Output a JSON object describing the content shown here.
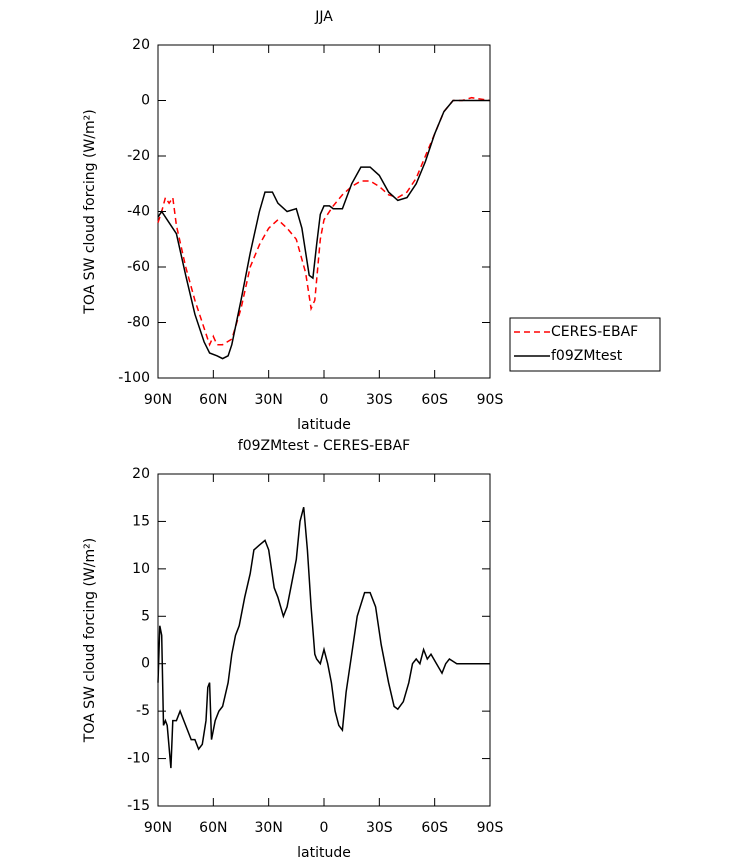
{
  "chart_data": [
    {
      "type": "line",
      "title": "JJA",
      "xlabel": "latitude",
      "ylabel": "TOA SW cloud forcing (W/m²)",
      "xlim": [
        90,
        -90
      ],
      "xticks": [
        {
          "value": 90,
          "label": "90N"
        },
        {
          "value": 60,
          "label": "60N"
        },
        {
          "value": 30,
          "label": "30N"
        },
        0,
        {
          "value": -30,
          "label": "30S"
        },
        {
          "value": -60,
          "label": "60S"
        },
        {
          "value": -90,
          "label": "90S"
        }
      ],
      "ylim": [
        -100,
        20
      ],
      "yticks": [
        -100,
        -80,
        -60,
        -40,
        -20,
        0,
        20
      ],
      "legend": "right",
      "series": [
        {
          "name": "CERES-EBAF",
          "color": "#ff0000",
          "linestyle": "dashed",
          "x": [
            90,
            88,
            86,
            84,
            82,
            80,
            75,
            70,
            65,
            62,
            60,
            58,
            55,
            50,
            45,
            40,
            35,
            30,
            25,
            20,
            15,
            10,
            7,
            5,
            2,
            0,
            -5,
            -10,
            -15,
            -20,
            -25,
            -30,
            -35,
            -40,
            -45,
            -50,
            -55,
            -60,
            -65,
            -70,
            -75,
            -80,
            -90
          ],
          "values": [
            -44,
            -40,
            -35,
            -37,
            -35,
            -45,
            -60,
            -72,
            -82,
            -88,
            -85,
            -88,
            -88,
            -86,
            -75,
            -60,
            -52,
            -46,
            -43,
            -46,
            -50,
            -62,
            -75,
            -72,
            -50,
            -43,
            -38,
            -34,
            -31,
            -29,
            -29,
            -31,
            -34,
            -35,
            -33,
            -28,
            -20,
            -12,
            -4,
            0,
            0,
            1,
            0
          ]
        },
        {
          "name": "f09ZMtest",
          "color": "#000000",
          "linestyle": "solid",
          "x": [
            90,
            88,
            85,
            80,
            75,
            70,
            65,
            62,
            58,
            55,
            52,
            50,
            45,
            40,
            35,
            32,
            28,
            25,
            20,
            15,
            12,
            8,
            6,
            4,
            2,
            0,
            -3,
            -5,
            -10,
            -15,
            -20,
            -25,
            -30,
            -35,
            -40,
            -45,
            -50,
            -55,
            -60,
            -65,
            -70,
            -80,
            -90
          ],
          "values": [
            -42,
            -40,
            -43,
            -48,
            -63,
            -77,
            -87,
            -91,
            -92,
            -93,
            -92,
            -88,
            -72,
            -55,
            -40,
            -33,
            -33,
            -37,
            -40,
            -39,
            -46,
            -63,
            -64,
            -52,
            -41,
            -38,
            -38,
            -39,
            -39,
            -30,
            -24,
            -24,
            -27,
            -33,
            -36,
            -35,
            -30,
            -22,
            -12,
            -4,
            0,
            0,
            0
          ]
        }
      ]
    },
    {
      "type": "line",
      "title": "f09ZMtest - CERES-EBAF",
      "xlabel": "latitude",
      "ylabel": "TOA SW cloud forcing (W/m²)",
      "xlim": [
        90,
        -90
      ],
      "xticks": [
        {
          "value": 90,
          "label": "90N"
        },
        {
          "value": 60,
          "label": "60N"
        },
        {
          "value": 30,
          "label": "30N"
        },
        0,
        {
          "value": -30,
          "label": "30S"
        },
        {
          "value": -60,
          "label": "60S"
        },
        {
          "value": -90,
          "label": "90S"
        }
      ],
      "ylim": [
        -15,
        20
      ],
      "yticks": [
        -15,
        -10,
        -5,
        0,
        5,
        10,
        15,
        20
      ],
      "series": [
        {
          "color": "#000000",
          "linestyle": "solid",
          "x": [
            90,
            89,
            88,
            87,
            86,
            85,
            83,
            82,
            80,
            78,
            76,
            74,
            72,
            70,
            68,
            66,
            64,
            63,
            62,
            61,
            59,
            57,
            55,
            52,
            50,
            48,
            46,
            43,
            40,
            38,
            35,
            32,
            30,
            27,
            25,
            22,
            20,
            18,
            15,
            13,
            11,
            9,
            7,
            5,
            4,
            2,
            0,
            -2,
            -4,
            -6,
            -8,
            -10,
            -12,
            -15,
            -18,
            -22,
            -25,
            -28,
            -31,
            -35,
            -38,
            -40,
            -43,
            -46,
            -48,
            -50,
            -52,
            -54,
            -56,
            -58,
            -61,
            -64,
            -66,
            -68,
            -72,
            -90
          ],
          "values": [
            -2,
            4,
            3,
            -6.5,
            -6,
            -6.5,
            -11,
            -6,
            -6,
            -5,
            -6,
            -7,
            -8,
            -8,
            -9,
            -8.5,
            -6,
            -2.5,
            -2,
            -8,
            -6,
            -5,
            -4.5,
            -2,
            1,
            3,
            4,
            7,
            9.5,
            12,
            12.5,
            13,
            12,
            8,
            7,
            5,
            6,
            8,
            11,
            15,
            16.5,
            12,
            6,
            1,
            0.5,
            0,
            1.5,
            0,
            -2,
            -5,
            -6.5,
            -7,
            -3,
            1,
            5,
            7.5,
            7.5,
            6,
            2,
            -2,
            -4.5,
            -4.8,
            -4,
            -2,
            0,
            0.5,
            0,
            1.5,
            0.5,
            1,
            0,
            -1,
            0,
            0.5,
            0,
            0
          ]
        }
      ]
    }
  ]
}
